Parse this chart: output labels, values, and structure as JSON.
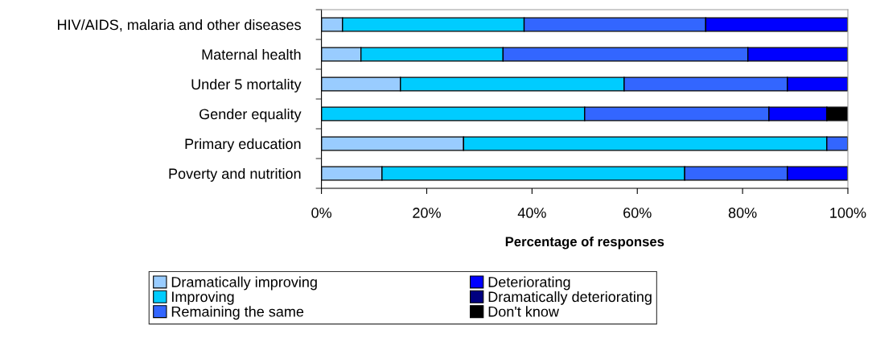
{
  "chart_data": {
    "type": "bar",
    "orientation": "horizontal",
    "stacked": true,
    "categories": [
      "HIV/AIDS, malaria and other diseases",
      "Maternal health",
      "Under 5 mortality",
      "Gender equality",
      "Primary education",
      "Poverty and nutrition"
    ],
    "series": [
      {
        "name": "Dramatically improving",
        "color": "#99ccff",
        "values": [
          4,
          7.5,
          15,
          0,
          27,
          11.5
        ]
      },
      {
        "name": "Improving",
        "color": "#00ccff",
        "values": [
          34.5,
          27,
          42.5,
          50,
          69,
          57.5
        ]
      },
      {
        "name": "Remaining the same",
        "color": "#3366ff",
        "values": [
          34.5,
          46.5,
          31,
          35,
          4,
          19.5
        ]
      },
      {
        "name": "Deteriorating",
        "color": "#0000ff",
        "values": [
          27,
          19,
          11.5,
          11,
          0,
          11.5
        ]
      },
      {
        "name": "Dramatically deteriorating",
        "color": "#000080",
        "values": [
          0,
          0,
          0,
          0,
          0,
          0
        ]
      },
      {
        "name": "Don't know",
        "color": "#000000",
        "values": [
          0,
          0,
          0,
          4,
          0,
          0
        ]
      }
    ],
    "xlim": [
      0,
      100
    ],
    "xticks": [
      {
        "value": 0,
        "label": "0%"
      },
      {
        "value": 20,
        "label": "20%"
      },
      {
        "value": 40,
        "label": "40%"
      },
      {
        "value": 60,
        "label": "60%"
      },
      {
        "value": 80,
        "label": "80%"
      },
      {
        "value": 100,
        "label": "100%"
      }
    ],
    "xlabel": "Percentage of responses",
    "grid": false,
    "legend": "bottom"
  }
}
